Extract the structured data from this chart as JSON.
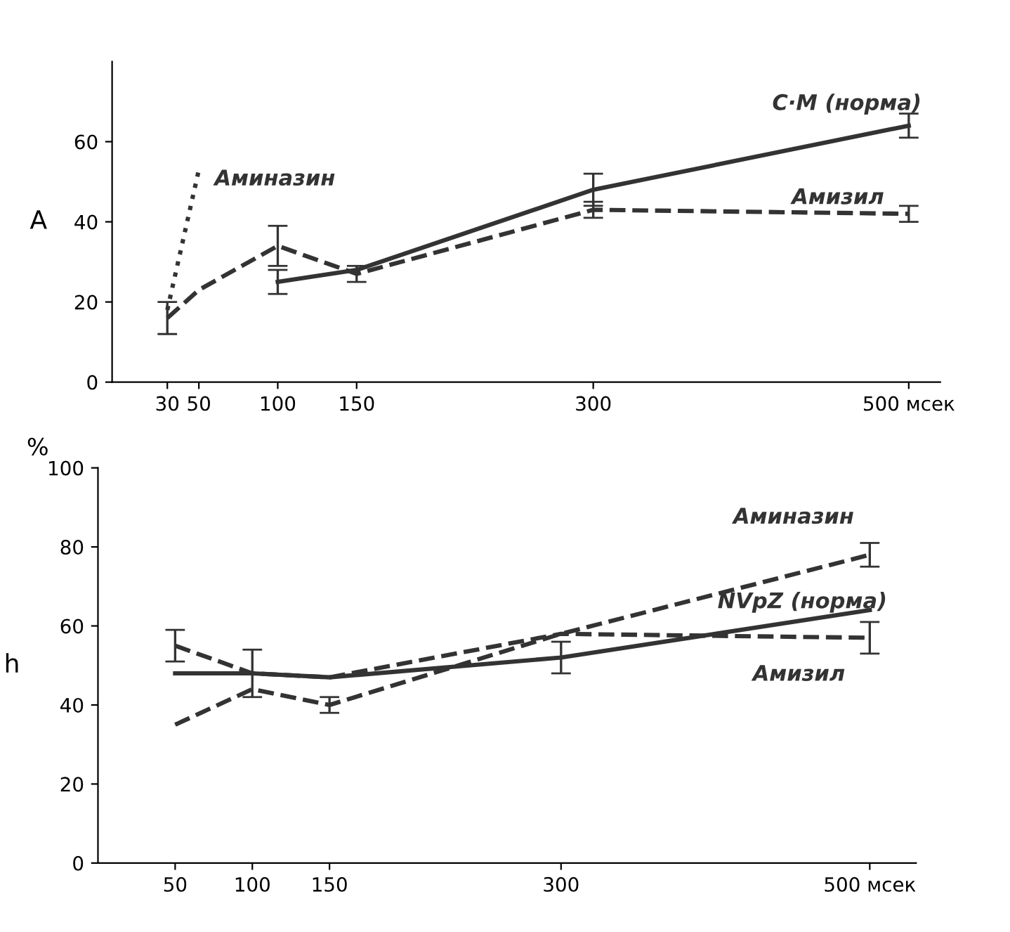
{
  "chart_data": [
    {
      "type": "line",
      "ylabel": "A",
      "xlim": [
        -5,
        520
      ],
      "xticks": [
        30,
        50,
        100,
        150,
        300,
        {
          "value": 500,
          "label": "500 мсек"
        }
      ],
      "ylim": [
        0,
        80
      ],
      "yticks": [
        0,
        20,
        40,
        60
      ],
      "grid": false,
      "legend": false,
      "marker": "none",
      "series": [
        {
          "name": "С·М (норма)",
          "color": "#333333",
          "line_style": "solid",
          "x": [
            100,
            150,
            300,
            500
          ],
          "values": [
            25,
            28,
            48,
            64
          ],
          "errors": [
            3,
            null,
            4,
            3
          ]
        },
        {
          "name": "Амизил",
          "color": "#333333",
          "line_style": "dashed",
          "x": [
            30,
            50,
            100,
            150,
            300,
            500
          ],
          "values": [
            16,
            23,
            34,
            27,
            43,
            42
          ],
          "errors": [
            4,
            null,
            5,
            2,
            2,
            2
          ]
        },
        {
          "name": "Аминазин",
          "color": "#333333",
          "line_style": "dotted",
          "x": [
            30,
            50
          ],
          "values": [
            18,
            53
          ]
        }
      ]
    },
    {
      "type": "line",
      "ylabel": "h",
      "annotations": [
        "%"
      ],
      "xlim": [
        0,
        530
      ],
      "xticks": [
        50,
        100,
        150,
        300,
        {
          "value": 500,
          "label": "500 мсек"
        }
      ],
      "ylim": [
        0,
        100
      ],
      "yticks": [
        0,
        20,
        40,
        60,
        80,
        100
      ],
      "grid": false,
      "legend": false,
      "marker": "none",
      "series": [
        {
          "name": "Аминазин",
          "color": "#333333",
          "line_style": "dashed",
          "x": [
            50,
            100,
            150,
            300,
            500
          ],
          "values": [
            35,
            44,
            40,
            58,
            78
          ],
          "errors": [
            null,
            null,
            2,
            null,
            3
          ]
        },
        {
          "name": "NVpZ (норма)",
          "color": "#333333",
          "line_style": "solid",
          "x": [
            50,
            100,
            150,
            300,
            500
          ],
          "values": [
            48,
            48,
            47,
            52,
            64
          ],
          "errors": [
            null,
            6,
            null,
            4,
            null
          ]
        },
        {
          "name": "Амизил",
          "color": "#333333",
          "line_style": "dashed",
          "x": [
            50,
            100,
            150,
            300,
            500
          ],
          "values": [
            55,
            48,
            47,
            58,
            57
          ],
          "errors": [
            4,
            null,
            null,
            null,
            4
          ]
        }
      ]
    }
  ]
}
